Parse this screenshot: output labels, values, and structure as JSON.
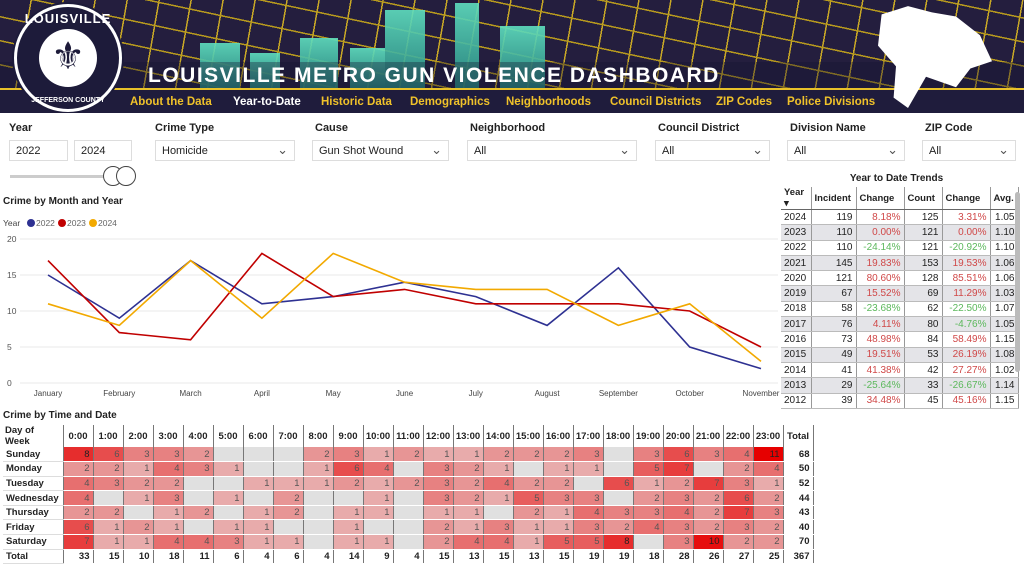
{
  "header": {
    "title": "LOUISVILLE METRO GUN VIOLENCE DASHBOARD",
    "logo_text": [
      "LOUISVILLE",
      "JEFFERSON COUNTY",
      "1778"
    ],
    "nav": [
      "About the Data",
      "Year-to-Date",
      "Historic Data",
      "Demographics",
      "Neighborhoods",
      "Council Districts",
      "ZIP Codes",
      "Police Divisions"
    ],
    "active_nav": "Year-to-Date"
  },
  "filters": {
    "year_label": "Year",
    "year_from": "2022",
    "year_to": "2024",
    "crime_type_label": "Crime Type",
    "crime_type": "Homicide",
    "cause_label": "Cause",
    "cause": "Gun Shot Wound",
    "neighborhood_label": "Neighborhood",
    "neighborhood": "All",
    "council_label": "Council District",
    "council": "All",
    "division_label": "Division Name",
    "division": "All",
    "zip_label": "ZIP Code",
    "zip": "All"
  },
  "colors": {
    "2022": "#2e3192",
    "2023": "#c00000",
    "2024": "#f2a900",
    "nav_text": "#f0c22a",
    "banner": "#1f1c3c",
    "heat_max": "#e60000",
    "heat_empty": "#e0e0e0"
  },
  "chart_data": {
    "type": "line",
    "title": "Crime by Month and Year",
    "legend_title": "Year",
    "legend": "top-left",
    "categories": [
      "January",
      "February",
      "March",
      "April",
      "May",
      "June",
      "July",
      "August",
      "September",
      "October",
      "November"
    ],
    "ylim": [
      0,
      20
    ],
    "yticks": [
      0,
      5,
      10,
      15,
      20
    ],
    "grid": true,
    "series": [
      {
        "name": "2022",
        "values": [
          15,
          9,
          17,
          11,
          12,
          14,
          12,
          8,
          16,
          5,
          2
        ]
      },
      {
        "name": "2023",
        "values": [
          17,
          7,
          6,
          18,
          12,
          13,
          11,
          11,
          11,
          10,
          5
        ]
      },
      {
        "name": "2024",
        "values": [
          11,
          8,
          17,
          9,
          18,
          14,
          13,
          13,
          8,
          11,
          3
        ]
      }
    ]
  },
  "ytd": {
    "title": "Year to Date Trends",
    "headers": [
      "Year",
      "Incident",
      "Change",
      "Count",
      "Change",
      "Avg."
    ],
    "rows": [
      [
        "2024",
        "119",
        "8.18%",
        "125",
        "3.31%",
        "1.05"
      ],
      [
        "2023",
        "110",
        "0.00%",
        "121",
        "0.00%",
        "1.10"
      ],
      [
        "2022",
        "110",
        "-24.14%",
        "121",
        "-20.92%",
        "1.10"
      ],
      [
        "2021",
        "145",
        "19.83%",
        "153",
        "19.53%",
        "1.06"
      ],
      [
        "2020",
        "121",
        "80.60%",
        "128",
        "85.51%",
        "1.06"
      ],
      [
        "2019",
        "67",
        "15.52%",
        "69",
        "11.29%",
        "1.03"
      ],
      [
        "2018",
        "58",
        "-23.68%",
        "62",
        "-22.50%",
        "1.07"
      ],
      [
        "2017",
        "76",
        "4.11%",
        "80",
        "-4.76%",
        "1.05"
      ],
      [
        "2016",
        "73",
        "48.98%",
        "84",
        "58.49%",
        "1.15"
      ],
      [
        "2015",
        "49",
        "19.51%",
        "53",
        "26.19%",
        "1.08"
      ],
      [
        "2014",
        "41",
        "41.38%",
        "42",
        "27.27%",
        "1.02"
      ],
      [
        "2013",
        "29",
        "-25.64%",
        "33",
        "-26.67%",
        "1.14"
      ],
      [
        "2012",
        "39",
        "34.48%",
        "45",
        "45.16%",
        "1.15"
      ]
    ]
  },
  "heatmap": {
    "title": "Crime by Time and Date",
    "corner": "Day of Week",
    "total_label": "Total",
    "hours": [
      "0:00",
      "1:00",
      "2:00",
      "3:00",
      "4:00",
      "5:00",
      "6:00",
      "7:00",
      "8:00",
      "9:00",
      "10:00",
      "11:00",
      "12:00",
      "13:00",
      "14:00",
      "15:00",
      "16:00",
      "17:00",
      "18:00",
      "19:00",
      "20:00",
      "21:00",
      "22:00",
      "23:00"
    ],
    "rows": [
      {
        "day": "Sunday",
        "values": [
          8,
          6,
          3,
          3,
          2,
          null,
          null,
          null,
          2,
          3,
          1,
          2,
          1,
          1,
          2,
          2,
          2,
          3,
          null,
          3,
          6,
          3,
          4,
          11
        ],
        "total": "68"
      },
      {
        "day": "Monday",
        "values": [
          2,
          2,
          1,
          4,
          3,
          1,
          null,
          null,
          1,
          6,
          4,
          null,
          3,
          2,
          1,
          null,
          1,
          1,
          null,
          5,
          7,
          null,
          2,
          4
        ],
        "total": "50"
      },
      {
        "day": "Tuesday",
        "values": [
          4,
          3,
          2,
          2,
          null,
          null,
          1,
          1,
          1,
          2,
          1,
          2,
          3,
          2,
          4,
          2,
          2,
          null,
          6,
          1,
          2,
          7,
          3,
          1
        ],
        "total": "52"
      },
      {
        "day": "Wednesday",
        "values": [
          4,
          null,
          1,
          3,
          null,
          1,
          null,
          2,
          null,
          null,
          1,
          null,
          3,
          2,
          1,
          5,
          3,
          3,
          null,
          2,
          3,
          2,
          6,
          2
        ],
        "total": "44"
      },
      {
        "day": "Thursday",
        "values": [
          2,
          2,
          null,
          1,
          2,
          null,
          1,
          2,
          null,
          1,
          1,
          null,
          1,
          1,
          null,
          2,
          1,
          4,
          3,
          3,
          4,
          2,
          7,
          3
        ],
        "total": "43"
      },
      {
        "day": "Friday",
        "values": [
          6,
          1,
          2,
          1,
          null,
          1,
          1,
          null,
          null,
          1,
          null,
          null,
          2,
          1,
          3,
          1,
          1,
          3,
          2,
          4,
          3,
          2,
          3,
          2
        ],
        "total": "40"
      },
      {
        "day": "Saturday",
        "values": [
          7,
          1,
          1,
          4,
          4,
          3,
          1,
          1,
          null,
          1,
          1,
          null,
          2,
          4,
          4,
          1,
          5,
          5,
          8,
          null,
          3,
          10,
          2,
          2
        ],
        "total": "70"
      }
    ],
    "totals": [
      "33",
      "15",
      "10",
      "18",
      "11",
      "6",
      "4",
      "6",
      "4",
      "14",
      "9",
      "4",
      "15",
      "13",
      "15",
      "13",
      "15",
      "19",
      "19",
      "18",
      "28",
      "26",
      "27",
      "25"
    ],
    "grand_total": "367"
  }
}
